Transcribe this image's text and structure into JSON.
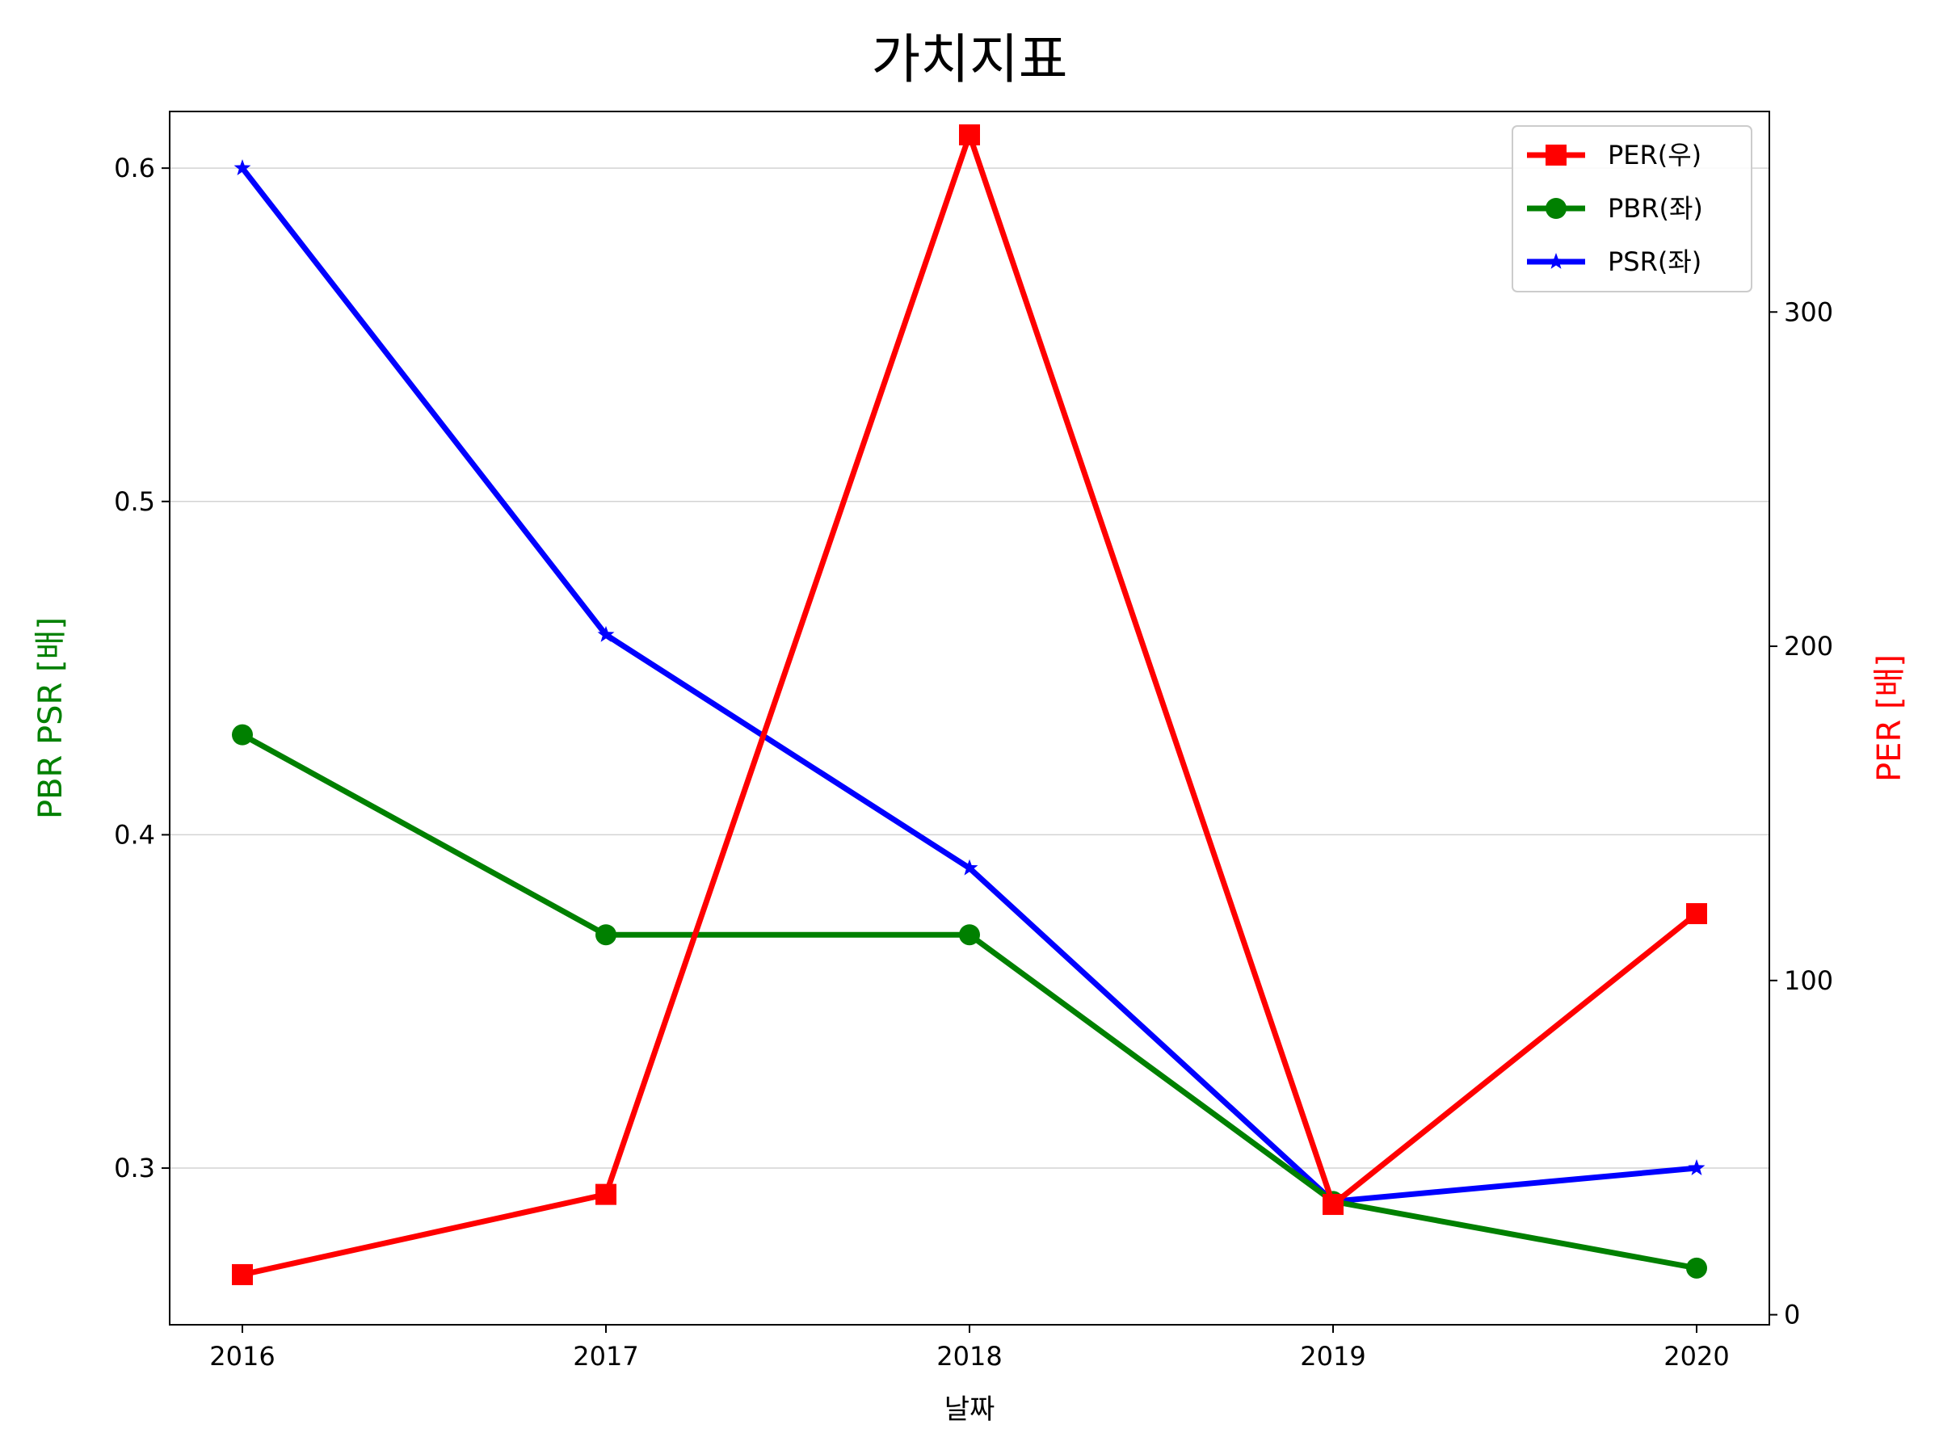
{
  "chart_data": {
    "type": "line",
    "title": "가치지표",
    "xlabel": "날짜",
    "ylabel_left": "PBR PSR [배]",
    "ylabel_right": "PER [배]",
    "categories": [
      "2016",
      "2017",
      "2018",
      "2019",
      "2020"
    ],
    "ylim_left": [
      0.253,
      0.617
    ],
    "ylim_right": [
      -3,
      360
    ],
    "yticks_left": [
      0.3,
      0.4,
      0.5,
      0.6
    ],
    "yticks_left_labels": [
      "0.3",
      "0.4",
      "0.5",
      "0.6"
    ],
    "yticks_right": [
      0,
      100,
      200,
      300
    ],
    "yticks_right_labels": [
      "0",
      "100",
      "200",
      "300"
    ],
    "grid": "horizontal (left axis)",
    "legend_position": "top-right",
    "series": [
      {
        "name": "PER(우)",
        "axis": "right",
        "color": "#ff0000",
        "marker": "square",
        "values": [
          12,
          36,
          353,
          33,
          120
        ]
      },
      {
        "name": "PBR(좌)",
        "axis": "left",
        "color": "#008000",
        "marker": "circle",
        "values": [
          0.43,
          0.37,
          0.37,
          0.29,
          0.27
        ]
      },
      {
        "name": "PSR(좌)",
        "axis": "left",
        "color": "#0000ff",
        "marker": "star",
        "values": [
          0.6,
          0.46,
          0.39,
          0.29,
          0.3
        ]
      }
    ],
    "ylabel_left_color": "#008000",
    "ylabel_right_color": "#ff0000"
  }
}
